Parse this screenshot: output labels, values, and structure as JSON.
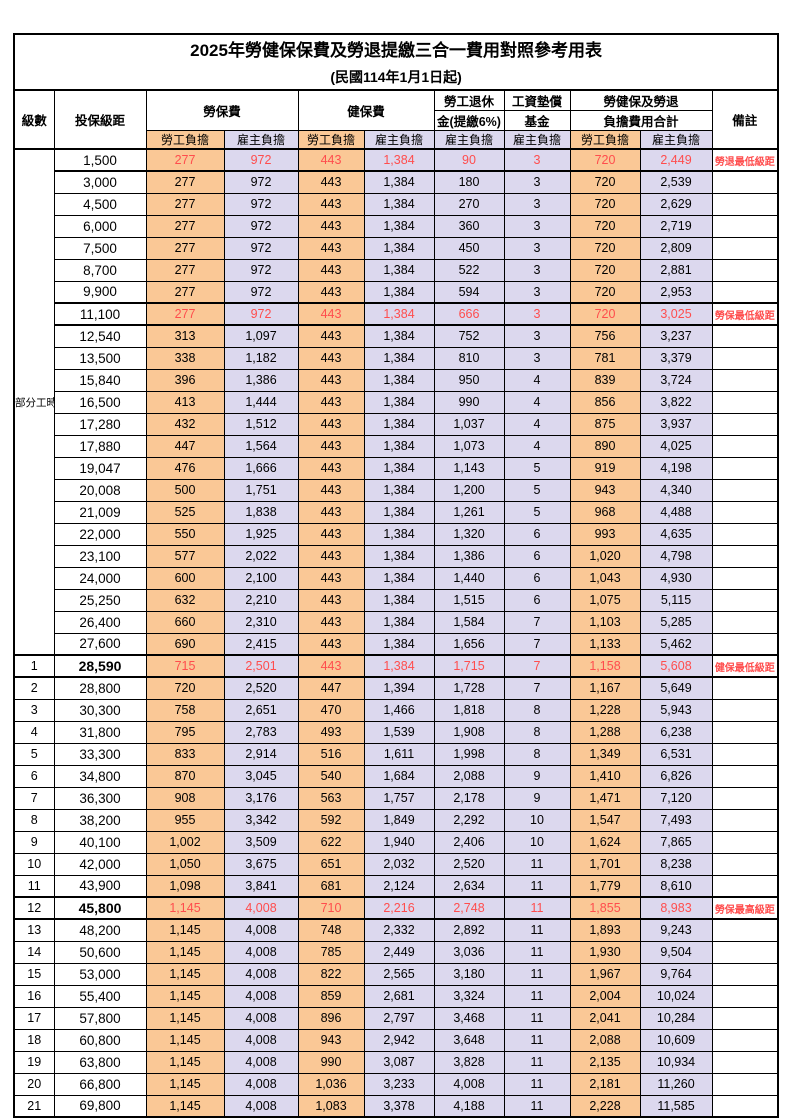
{
  "title": "2025年勞健保保費及勞退提繳三合一費用對照參考用表",
  "subtitle": "(民國114年1月1日起)",
  "colors": {
    "employee_bg": "#FAC896",
    "employer_bg": "#DCD8EE",
    "highlight_text": "#FF4D4D",
    "grid": "#000000"
  },
  "header": {
    "level": "級數",
    "salary": "投保級距",
    "labor_fee": "勞保費",
    "health_fee": "健保費",
    "pension_line1": "勞工退休",
    "pension_line2": "金(提繳6%)",
    "fund_line1": "工資墊償",
    "fund_line2": "基金",
    "total_line1": "勞健保及勞退",
    "total_line2": "負擔費用合計",
    "remark": "備註",
    "employee_share": "勞工負擔",
    "employer_share": "雇主負擔"
  },
  "part_time_label": "部分工時",
  "part_time_rowspan": 23,
  "rows": [
    {
      "level": "",
      "salary": "1,500",
      "values": [
        "277",
        "972",
        "443",
        "1,384",
        "90",
        "3",
        "720",
        "2,449"
      ],
      "remark": "勞退最低級距",
      "red": true
    },
    {
      "level": "",
      "salary": "3,000",
      "values": [
        "277",
        "972",
        "443",
        "1,384",
        "180",
        "3",
        "720",
        "2,539"
      ],
      "remark": ""
    },
    {
      "level": "",
      "salary": "4,500",
      "values": [
        "277",
        "972",
        "443",
        "1,384",
        "270",
        "3",
        "720",
        "2,629"
      ],
      "remark": ""
    },
    {
      "level": "",
      "salary": "6,000",
      "values": [
        "277",
        "972",
        "443",
        "1,384",
        "360",
        "3",
        "720",
        "2,719"
      ],
      "remark": ""
    },
    {
      "level": "",
      "salary": "7,500",
      "values": [
        "277",
        "972",
        "443",
        "1,384",
        "450",
        "3",
        "720",
        "2,809"
      ],
      "remark": ""
    },
    {
      "level": "",
      "salary": "8,700",
      "values": [
        "277",
        "972",
        "443",
        "1,384",
        "522",
        "3",
        "720",
        "2,881"
      ],
      "remark": ""
    },
    {
      "level": "",
      "salary": "9,900",
      "values": [
        "277",
        "972",
        "443",
        "1,384",
        "594",
        "3",
        "720",
        "2,953"
      ],
      "remark": ""
    },
    {
      "level": "",
      "salary": "11,100",
      "values": [
        "277",
        "972",
        "443",
        "1,384",
        "666",
        "3",
        "720",
        "3,025"
      ],
      "remark": "勞保最低級距",
      "red": true
    },
    {
      "level": "",
      "salary": "12,540",
      "values": [
        "313",
        "1,097",
        "443",
        "1,384",
        "752",
        "3",
        "756",
        "3,237"
      ],
      "remark": ""
    },
    {
      "level": "",
      "salary": "13,500",
      "values": [
        "338",
        "1,182",
        "443",
        "1,384",
        "810",
        "3",
        "781",
        "3,379"
      ],
      "remark": ""
    },
    {
      "level": "",
      "salary": "15,840",
      "values": [
        "396",
        "1,386",
        "443",
        "1,384",
        "950",
        "4",
        "839",
        "3,724"
      ],
      "remark": ""
    },
    {
      "level": "",
      "salary": "16,500",
      "values": [
        "413",
        "1,444",
        "443",
        "1,384",
        "990",
        "4",
        "856",
        "3,822"
      ],
      "remark": ""
    },
    {
      "level": "",
      "salary": "17,280",
      "values": [
        "432",
        "1,512",
        "443",
        "1,384",
        "1,037",
        "4",
        "875",
        "3,937"
      ],
      "remark": ""
    },
    {
      "level": "",
      "salary": "17,880",
      "values": [
        "447",
        "1,564",
        "443",
        "1,384",
        "1,073",
        "4",
        "890",
        "4,025"
      ],
      "remark": ""
    },
    {
      "level": "",
      "salary": "19,047",
      "values": [
        "476",
        "1,666",
        "443",
        "1,384",
        "1,143",
        "5",
        "919",
        "4,198"
      ],
      "remark": ""
    },
    {
      "level": "",
      "salary": "20,008",
      "values": [
        "500",
        "1,751",
        "443",
        "1,384",
        "1,200",
        "5",
        "943",
        "4,340"
      ],
      "remark": ""
    },
    {
      "level": "",
      "salary": "21,009",
      "values": [
        "525",
        "1,838",
        "443",
        "1,384",
        "1,261",
        "5",
        "968",
        "4,488"
      ],
      "remark": ""
    },
    {
      "level": "",
      "salary": "22,000",
      "values": [
        "550",
        "1,925",
        "443",
        "1,384",
        "1,320",
        "6",
        "993",
        "4,635"
      ],
      "remark": ""
    },
    {
      "level": "",
      "salary": "23,100",
      "values": [
        "577",
        "2,022",
        "443",
        "1,384",
        "1,386",
        "6",
        "1,020",
        "4,798"
      ],
      "remark": ""
    },
    {
      "level": "",
      "salary": "24,000",
      "values": [
        "600",
        "2,100",
        "443",
        "1,384",
        "1,440",
        "6",
        "1,043",
        "4,930"
      ],
      "remark": ""
    },
    {
      "level": "",
      "salary": "25,250",
      "values": [
        "632",
        "2,210",
        "443",
        "1,384",
        "1,515",
        "6",
        "1,075",
        "5,115"
      ],
      "remark": ""
    },
    {
      "level": "",
      "salary": "26,400",
      "values": [
        "660",
        "2,310",
        "443",
        "1,384",
        "1,584",
        "7",
        "1,103",
        "5,285"
      ],
      "remark": ""
    },
    {
      "level": "",
      "salary": "27,600",
      "values": [
        "690",
        "2,415",
        "443",
        "1,384",
        "1,656",
        "7",
        "1,133",
        "5,462"
      ],
      "remark": ""
    },
    {
      "level": "1",
      "salary": "28,590",
      "values": [
        "715",
        "2,501",
        "443",
        "1,384",
        "1,715",
        "7",
        "1,158",
        "5,608"
      ],
      "remark": "健保最低級距",
      "red": true,
      "bold": true
    },
    {
      "level": "2",
      "salary": "28,800",
      "values": [
        "720",
        "2,520",
        "447",
        "1,394",
        "1,728",
        "7",
        "1,167",
        "5,649"
      ],
      "remark": ""
    },
    {
      "level": "3",
      "salary": "30,300",
      "values": [
        "758",
        "2,651",
        "470",
        "1,466",
        "1,818",
        "8",
        "1,228",
        "5,943"
      ],
      "remark": ""
    },
    {
      "level": "4",
      "salary": "31,800",
      "values": [
        "795",
        "2,783",
        "493",
        "1,539",
        "1,908",
        "8",
        "1,288",
        "6,238"
      ],
      "remark": ""
    },
    {
      "level": "5",
      "salary": "33,300",
      "values": [
        "833",
        "2,914",
        "516",
        "1,611",
        "1,998",
        "8",
        "1,349",
        "6,531"
      ],
      "remark": ""
    },
    {
      "level": "6",
      "salary": "34,800",
      "values": [
        "870",
        "3,045",
        "540",
        "1,684",
        "2,088",
        "9",
        "1,410",
        "6,826"
      ],
      "remark": ""
    },
    {
      "level": "7",
      "salary": "36,300",
      "values": [
        "908",
        "3,176",
        "563",
        "1,757",
        "2,178",
        "9",
        "1,471",
        "7,120"
      ],
      "remark": ""
    },
    {
      "level": "8",
      "salary": "38,200",
      "values": [
        "955",
        "3,342",
        "592",
        "1,849",
        "2,292",
        "10",
        "1,547",
        "7,493"
      ],
      "remark": ""
    },
    {
      "level": "9",
      "salary": "40,100",
      "values": [
        "1,002",
        "3,509",
        "622",
        "1,940",
        "2,406",
        "10",
        "1,624",
        "7,865"
      ],
      "remark": ""
    },
    {
      "level": "10",
      "salary": "42,000",
      "values": [
        "1,050",
        "3,675",
        "651",
        "2,032",
        "2,520",
        "11",
        "1,701",
        "8,238"
      ],
      "remark": ""
    },
    {
      "level": "11",
      "salary": "43,900",
      "values": [
        "1,098",
        "3,841",
        "681",
        "2,124",
        "2,634",
        "11",
        "1,779",
        "8,610"
      ],
      "remark": ""
    },
    {
      "level": "12",
      "salary": "45,800",
      "values": [
        "1,145",
        "4,008",
        "710",
        "2,216",
        "2,748",
        "11",
        "1,855",
        "8,983"
      ],
      "remark": "勞保最高級距",
      "red": true,
      "bold": true
    },
    {
      "level": "13",
      "salary": "48,200",
      "values": [
        "1,145",
        "4,008",
        "748",
        "2,332",
        "2,892",
        "11",
        "1,893",
        "9,243"
      ],
      "remark": ""
    },
    {
      "level": "14",
      "salary": "50,600",
      "values": [
        "1,145",
        "4,008",
        "785",
        "2,449",
        "3,036",
        "11",
        "1,930",
        "9,504"
      ],
      "remark": ""
    },
    {
      "level": "15",
      "salary": "53,000",
      "values": [
        "1,145",
        "4,008",
        "822",
        "2,565",
        "3,180",
        "11",
        "1,967",
        "9,764"
      ],
      "remark": ""
    },
    {
      "level": "16",
      "salary": "55,400",
      "values": [
        "1,145",
        "4,008",
        "859",
        "2,681",
        "3,324",
        "11",
        "2,004",
        "10,024"
      ],
      "remark": ""
    },
    {
      "level": "17",
      "salary": "57,800",
      "values": [
        "1,145",
        "4,008",
        "896",
        "2,797",
        "3,468",
        "11",
        "2,041",
        "10,284"
      ],
      "remark": ""
    },
    {
      "level": "18",
      "salary": "60,800",
      "values": [
        "1,145",
        "4,008",
        "943",
        "2,942",
        "3,648",
        "11",
        "2,088",
        "10,609"
      ],
      "remark": ""
    },
    {
      "level": "19",
      "salary": "63,800",
      "values": [
        "1,145",
        "4,008",
        "990",
        "3,087",
        "3,828",
        "11",
        "2,135",
        "10,934"
      ],
      "remark": ""
    },
    {
      "level": "20",
      "salary": "66,800",
      "values": [
        "1,145",
        "4,008",
        "1,036",
        "3,233",
        "4,008",
        "11",
        "2,181",
        "11,260"
      ],
      "remark": ""
    },
    {
      "level": "21",
      "salary": "69,800",
      "values": [
        "1,145",
        "4,008",
        "1,083",
        "3,378",
        "4,188",
        "11",
        "2,228",
        "11,585"
      ],
      "remark": ""
    }
  ]
}
